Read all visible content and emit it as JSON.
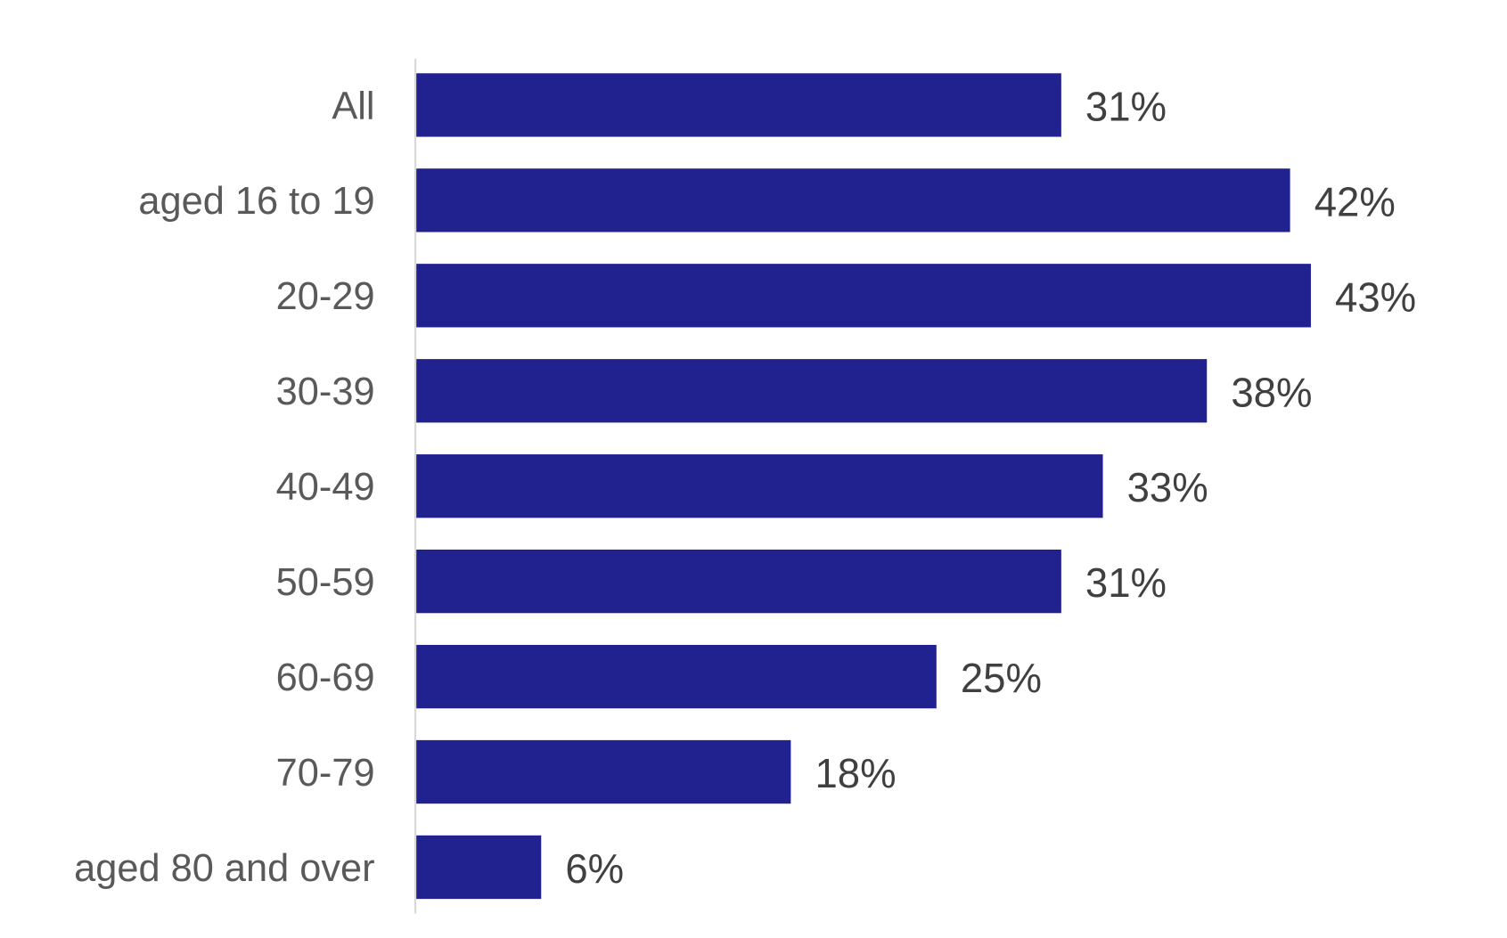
{
  "chart_data": {
    "type": "bar",
    "orientation": "horizontal",
    "categories": [
      "All",
      "aged 16 to 19",
      "20-29",
      "30-39",
      "40-49",
      "50-59",
      "60-69",
      "70-79",
      "aged 80 and over"
    ],
    "values": [
      31,
      42,
      43,
      38,
      33,
      31,
      25,
      18,
      6
    ],
    "data_labels": [
      "31%",
      "42%",
      "43%",
      "38%",
      "33%",
      "31%",
      "25%",
      "18%",
      "6%"
    ],
    "title": "",
    "xlabel": "",
    "ylabel": "",
    "xlim": [
      0,
      43
    ],
    "grid": false,
    "legend": "none",
    "colors": {
      "bar": "#21218f",
      "category_label": "#595959",
      "value_label": "#404040",
      "axis": "#d9d9d9"
    }
  }
}
